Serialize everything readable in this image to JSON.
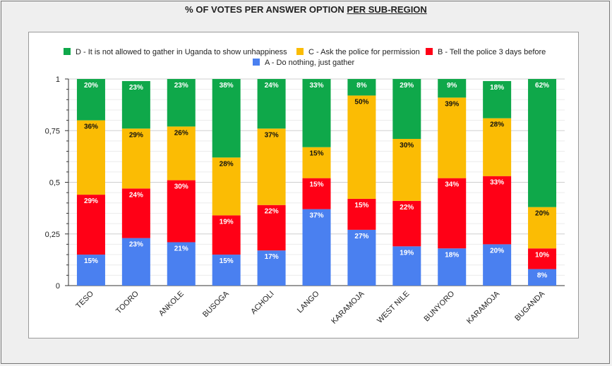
{
  "page": {
    "title_main": "% OF VOTES PER ANSWER OPTION",
    "title_underlined": "PER SUB-REGION"
  },
  "chart_data": {
    "type": "bar",
    "stacked": true,
    "title": "% OF VOTES PER ANSWER OPTION PER SUB-REGION",
    "categories": [
      "TESO",
      "TOORO",
      "ANKOLE",
      "BUSOGA",
      "ACHOLI",
      "LANGO",
      "KARAMOJA",
      "WEST NILE",
      "BUNYORO",
      "KARAMOJA",
      "BUGANDA"
    ],
    "ylim": [
      0,
      1
    ],
    "yticks": [
      0,
      0.25,
      0.5,
      0.75,
      1
    ],
    "ytick_labels": [
      "0",
      "0,25",
      "0,5",
      "0,75",
      "1"
    ],
    "grid": true,
    "legend_position": "top",
    "series": [
      {
        "name": "A - Do nothing, just gather",
        "color": "#4a80f0",
        "label_color": "#ffffff",
        "values": [
          0.15,
          0.23,
          0.21,
          0.15,
          0.17,
          0.37,
          0.27,
          0.19,
          0.18,
          0.2,
          0.08
        ],
        "labels": [
          "15%",
          "23%",
          "21%",
          "15%",
          "17%",
          "37%",
          "27%",
          "19%",
          "18%",
          "20%",
          "8%"
        ]
      },
      {
        "name": "B - Tell the police 3 days before",
        "color": "#ff0016",
        "label_color": "#ffffff",
        "values": [
          0.29,
          0.24,
          0.3,
          0.19,
          0.22,
          0.15,
          0.15,
          0.22,
          0.34,
          0.33,
          0.1
        ],
        "labels": [
          "29%",
          "24%",
          "30%",
          "19%",
          "22%",
          "15%",
          "15%",
          "22%",
          "34%",
          "33%",
          "10%"
        ]
      },
      {
        "name": "C - Ask the police for permission",
        "color": "#fbbc04",
        "label_color": "#111111",
        "values": [
          0.36,
          0.29,
          0.26,
          0.28,
          0.37,
          0.15,
          0.5,
          0.3,
          0.39,
          0.28,
          0.2
        ],
        "labels": [
          "36%",
          "29%",
          "26%",
          "28%",
          "37%",
          "15%",
          "50%",
          "30%",
          "39%",
          "28%",
          "20%"
        ]
      },
      {
        "name": "D - It is not allowed to gather in Uganda to show unhappiness",
        "color": "#0fa84a",
        "label_color": "#ffffff",
        "values": [
          0.2,
          0.23,
          0.23,
          0.38,
          0.24,
          0.33,
          0.08,
          0.29,
          0.09,
          0.18,
          0.62
        ],
        "labels": [
          "20%",
          "23%",
          "23%",
          "38%",
          "24%",
          "33%",
          "8%",
          "29%",
          "9%",
          "18%",
          "62%"
        ]
      }
    ],
    "legend_order": [
      3,
      2,
      1,
      0
    ]
  }
}
